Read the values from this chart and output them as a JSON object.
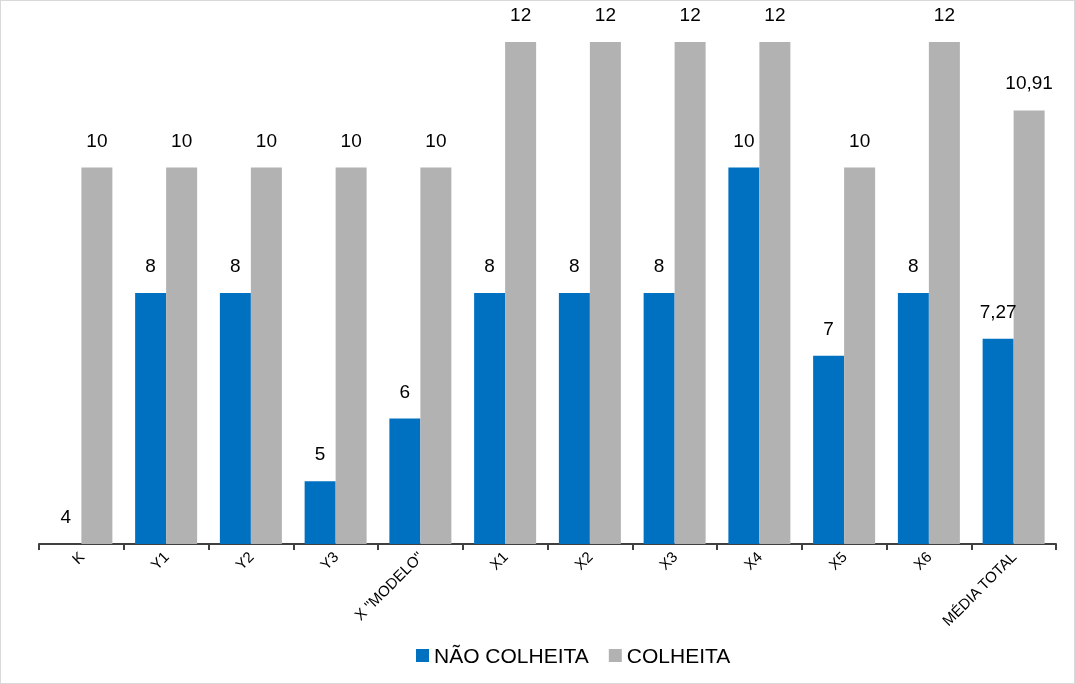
{
  "chart_data": {
    "type": "bar",
    "categories": [
      "K",
      "Y1",
      "Y2",
      "Y3",
      "X \"MODELO\"",
      "X1",
      "X2",
      "X3",
      "X4",
      "X5",
      "X6",
      "MÉDIA TOTAL"
    ],
    "series": [
      {
        "name": "NÃO COLHEITA",
        "color": "#0070c0",
        "values": [
          4,
          8,
          8,
          5,
          6,
          8,
          8,
          8,
          10,
          7,
          8,
          7.27
        ],
        "value_labels": [
          "4",
          "8",
          "8",
          "5",
          "6",
          "8",
          "8",
          "8",
          "10",
          "7",
          "8",
          "7,27"
        ]
      },
      {
        "name": "COLHEITA",
        "color": "#b2b2b2",
        "values": [
          10,
          10,
          10,
          10,
          10,
          12,
          12,
          12,
          12,
          10,
          12,
          10.91
        ],
        "value_labels": [
          "10",
          "10",
          "10",
          "10",
          "10",
          "12",
          "12",
          "12",
          "12",
          "10",
          "12",
          "10,91"
        ]
      }
    ],
    "ylim": [
      4,
      12
    ],
    "tick_labels": "x",
    "grid": false,
    "legend": "bottom"
  }
}
